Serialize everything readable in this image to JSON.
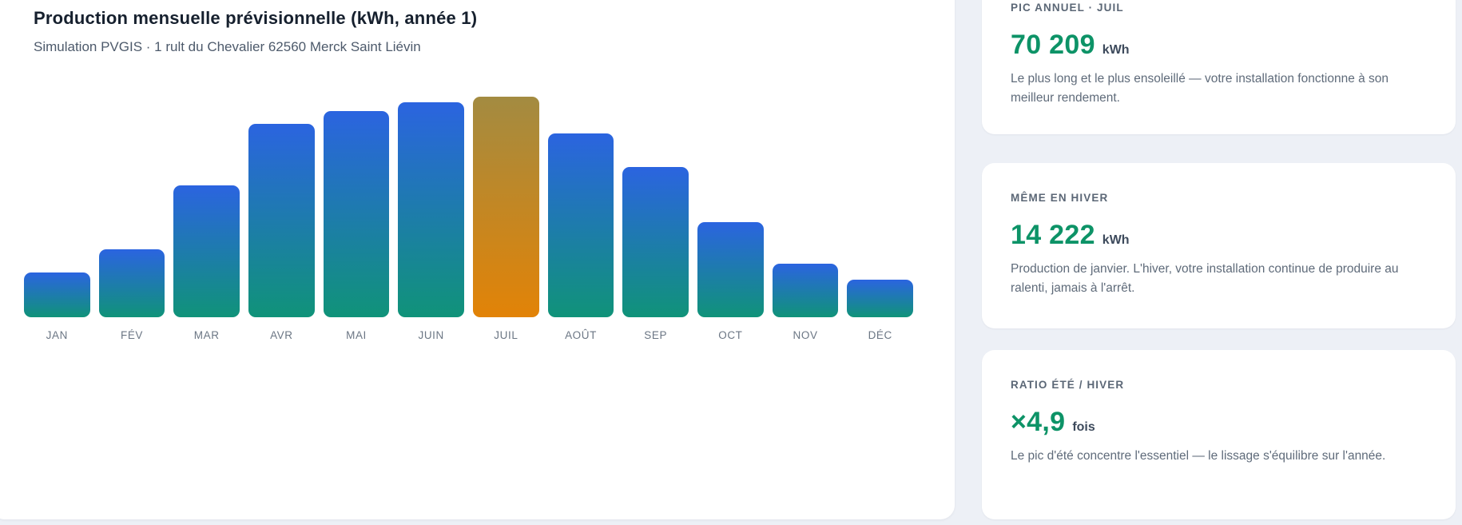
{
  "page": {
    "background_color": "#edf0f6",
    "accent_green": "#0d9367"
  },
  "chart_panel": {
    "title": "Production mensuelle prévisionnelle (kWh, année 1)",
    "subtitle": "Simulation PVGIS · 1 rult du Chevalier 62560 Merck Saint Liévin"
  },
  "chart_data": {
    "type": "bar",
    "title": "Production mensuelle prévisionnelle (kWh, année 1)",
    "categories": [
      "JAN",
      "FÉV",
      "MAR",
      "AVR",
      "MAI",
      "JUIN",
      "JUIL",
      "AOÛT",
      "SEP",
      "OCT",
      "NOV",
      "DÉC"
    ],
    "values": [
      14222,
      21600,
      42000,
      61600,
      65600,
      68400,
      70209,
      58500,
      47800,
      30300,
      17000,
      12000
    ],
    "unit": "kWh",
    "ylim": [
      0,
      70209
    ],
    "highlight_index": 6,
    "highlighted_category": "JUIL",
    "bar_gradient_top": "#2b64e0",
    "bar_gradient_bottom": "#109379",
    "highlight_gradient_top": "#a38b41",
    "highlight_gradient_bottom": "#e28307",
    "grid": false,
    "legend": false
  },
  "stat_cards": [
    {
      "label": "PIC ANNUEL · JUIL",
      "value": "70 209",
      "unit": "kWh",
      "description": "Le plus long et le plus ensoleillé — votre installation fonctionne à son meilleur rendement."
    },
    {
      "label": "MÊME EN HIVER",
      "value": "14 222",
      "unit": "kWh",
      "description": "Production de janvier. L'hiver, votre installation continue de produire au ralenti, jamais à l'arrêt."
    },
    {
      "label": "RATIO ÉTÉ / HIVER",
      "value": "×4,9",
      "unit": "fois",
      "description": "Le pic d'été concentre l'essentiel — le lissage s'équilibre sur l'année."
    }
  ]
}
